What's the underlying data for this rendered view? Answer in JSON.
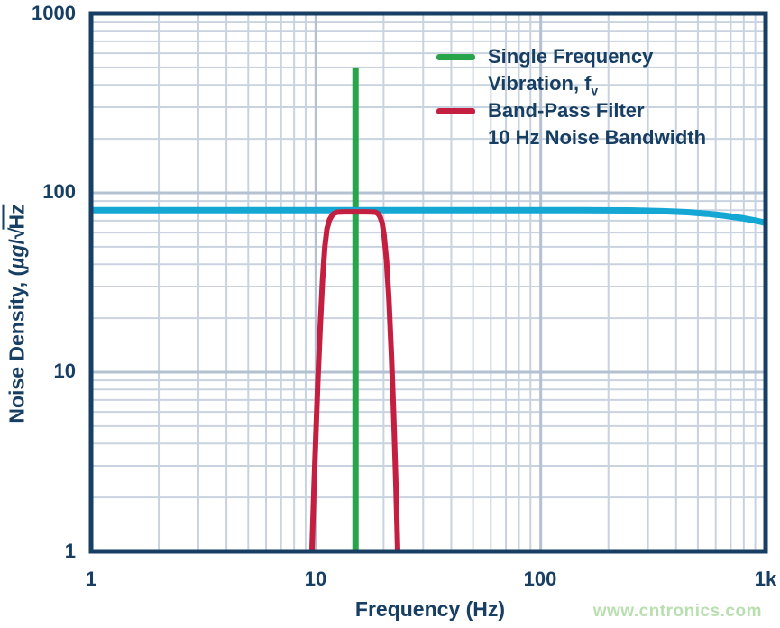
{
  "watermark": "www.cntronics.com",
  "colors": {
    "navy": "#173E63",
    "green": "#28A54A",
    "red": "#C41E40",
    "cyan": "#14A7D4",
    "grid_minor": "#C9D3DF",
    "grid_major": "#B4C1D2",
    "watermark_green": "#B9DFB0"
  },
  "chart_data": {
    "type": "line",
    "grid": "log-log, minor and major gridlines on",
    "legend_position": "top-right inside plot",
    "x_axis": {
      "label": "Frequency (Hz)",
      "scale": "log",
      "min": 1,
      "max": 1000,
      "ticks": [
        {
          "value": 1,
          "label": "1"
        },
        {
          "value": 10,
          "label": "10"
        },
        {
          "value": 100,
          "label": "100"
        },
        {
          "value": 1000,
          "label": "1k"
        }
      ]
    },
    "y_axis": {
      "label_prefix": "Noise Density, (",
      "label_mu": "µg",
      "label_slash": "/",
      "label_radical": "√",
      "label_radicand": "Hz",
      "scale": "log",
      "min": 1,
      "max": 1000,
      "ticks": [
        {
          "value": 1000,
          "label": "1000"
        },
        {
          "value": 100,
          "label": "100"
        },
        {
          "value": 10,
          "label": "10"
        },
        {
          "value": 1,
          "label": "1"
        }
      ]
    },
    "series": [
      {
        "name": "Single Frequency Vibration, fv",
        "type": "vline",
        "color": "#28A54A",
        "width": 7,
        "x": 15,
        "y_top": 500,
        "y_bottom": 1
      },
      {
        "type": "line",
        "color": "#14A7D4",
        "width": 7,
        "points": [
          [
            1,
            80
          ],
          [
            50,
            80
          ],
          [
            150,
            80
          ],
          [
            250,
            79.8
          ],
          [
            350,
            79
          ],
          [
            450,
            78
          ],
          [
            550,
            76.5
          ],
          [
            650,
            74.8
          ],
          [
            800,
            72
          ],
          [
            900,
            70
          ],
          [
            1000,
            68
          ]
        ]
      },
      {
        "name": "Band-Pass Filter 10 Hz Noise Bandwidth",
        "type": "line",
        "color": "#C41E40",
        "width": 6,
        "points": [
          [
            9.6,
            1
          ],
          [
            9.8,
            2.2
          ],
          [
            10.0,
            4.5
          ],
          [
            10.2,
            9
          ],
          [
            10.45,
            18
          ],
          [
            10.7,
            33
          ],
          [
            10.95,
            50
          ],
          [
            11.2,
            63
          ],
          [
            11.5,
            71
          ],
          [
            11.9,
            76
          ],
          [
            12.4,
            78
          ],
          [
            13.5,
            78.3
          ],
          [
            15,
            78.3
          ],
          [
            16.5,
            78.3
          ],
          [
            17.5,
            78.2
          ],
          [
            18.4,
            78
          ],
          [
            18.9,
            76.5
          ],
          [
            19.3,
            73.5
          ],
          [
            19.7,
            68
          ],
          [
            20.1,
            58
          ],
          [
            20.6,
            42
          ],
          [
            21.1,
            26
          ],
          [
            21.7,
            12
          ],
          [
            22.2,
            5.5
          ],
          [
            22.7,
            2.3
          ],
          [
            23.1,
            1
          ]
        ]
      }
    ],
    "legend": {
      "items": [
        {
          "swatch_color": "#28A54A",
          "line1": "Single Frequency",
          "line2_main": "Vibration, f",
          "line2_sub": "v"
        },
        {
          "swatch_color": "#C41E40",
          "line1": "Band-Pass Filter",
          "line2_main": "10 Hz Noise Bandwidth",
          "line2_sub": ""
        }
      ]
    }
  }
}
